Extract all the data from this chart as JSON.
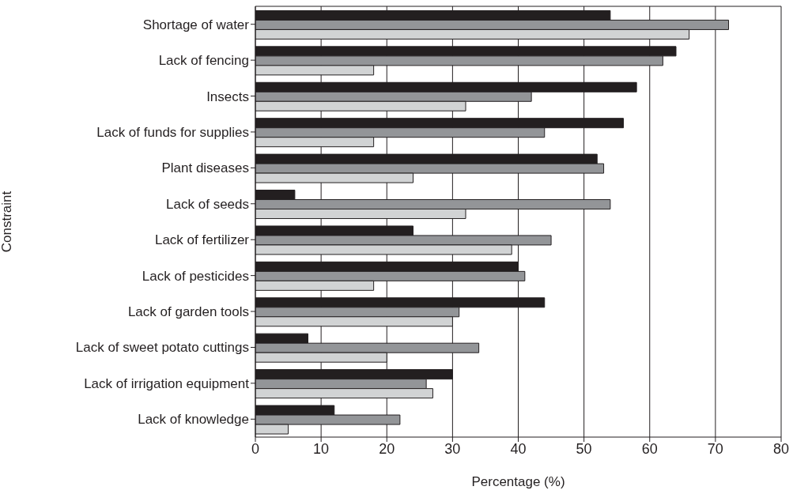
{
  "chart_data": {
    "type": "bar",
    "orientation": "horizontal",
    "xlabel": "Percentage (%)",
    "ylabel": "Constraint",
    "categories": [
      "Shortage of water",
      "Lack of fencing",
      "Insects",
      "Lack of funds for supplies",
      "Plant diseases",
      "Lack of seeds",
      "Lack of fertilizer",
      "Lack of pesticides",
      "Lack of garden tools",
      "Lack of sweet potato cuttings",
      "Lack of irrigation equipment",
      "Lack of knowledge"
    ],
    "series": [
      {
        "color": "#231f20",
        "values": [
          54,
          64,
          58,
          56,
          52,
          6,
          24,
          40,
          44,
          8,
          30,
          12
        ]
      },
      {
        "color": "#939598",
        "values": [
          72,
          62,
          42,
          44,
          53,
          54,
          45,
          41,
          31,
          34,
          26,
          22
        ]
      },
      {
        "color": "#d1d3d4",
        "values": [
          66,
          18,
          32,
          18,
          24,
          32,
          39,
          18,
          30,
          20,
          27,
          5
        ]
      }
    ],
    "xlim": [
      0,
      80
    ],
    "xticks": [
      0,
      10,
      20,
      30,
      40,
      50,
      60,
      70,
      80
    ],
    "grid": "x"
  }
}
